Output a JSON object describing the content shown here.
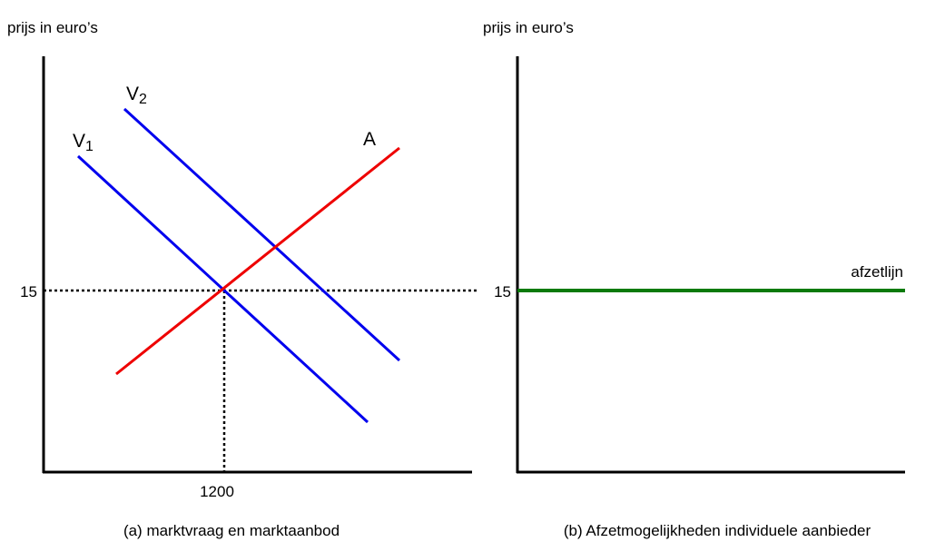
{
  "panels": [
    {
      "y_axis_label": "prijs in euro’s",
      "y_tick": "15",
      "x_tick": "1200",
      "curves": [
        {
          "label": "V",
          "subscript": "1"
        },
        {
          "label": "V",
          "subscript": "2"
        },
        {
          "label": "A"
        }
      ],
      "caption": "(a) marktvraag en marktaanbod"
    },
    {
      "y_axis_label": "prijs in euro’s",
      "y_tick": "15",
      "curves": [
        {
          "label": "afzetlijn"
        }
      ],
      "caption": "(b) Afzetmogelijkheden individuele aanbieder"
    }
  ]
}
